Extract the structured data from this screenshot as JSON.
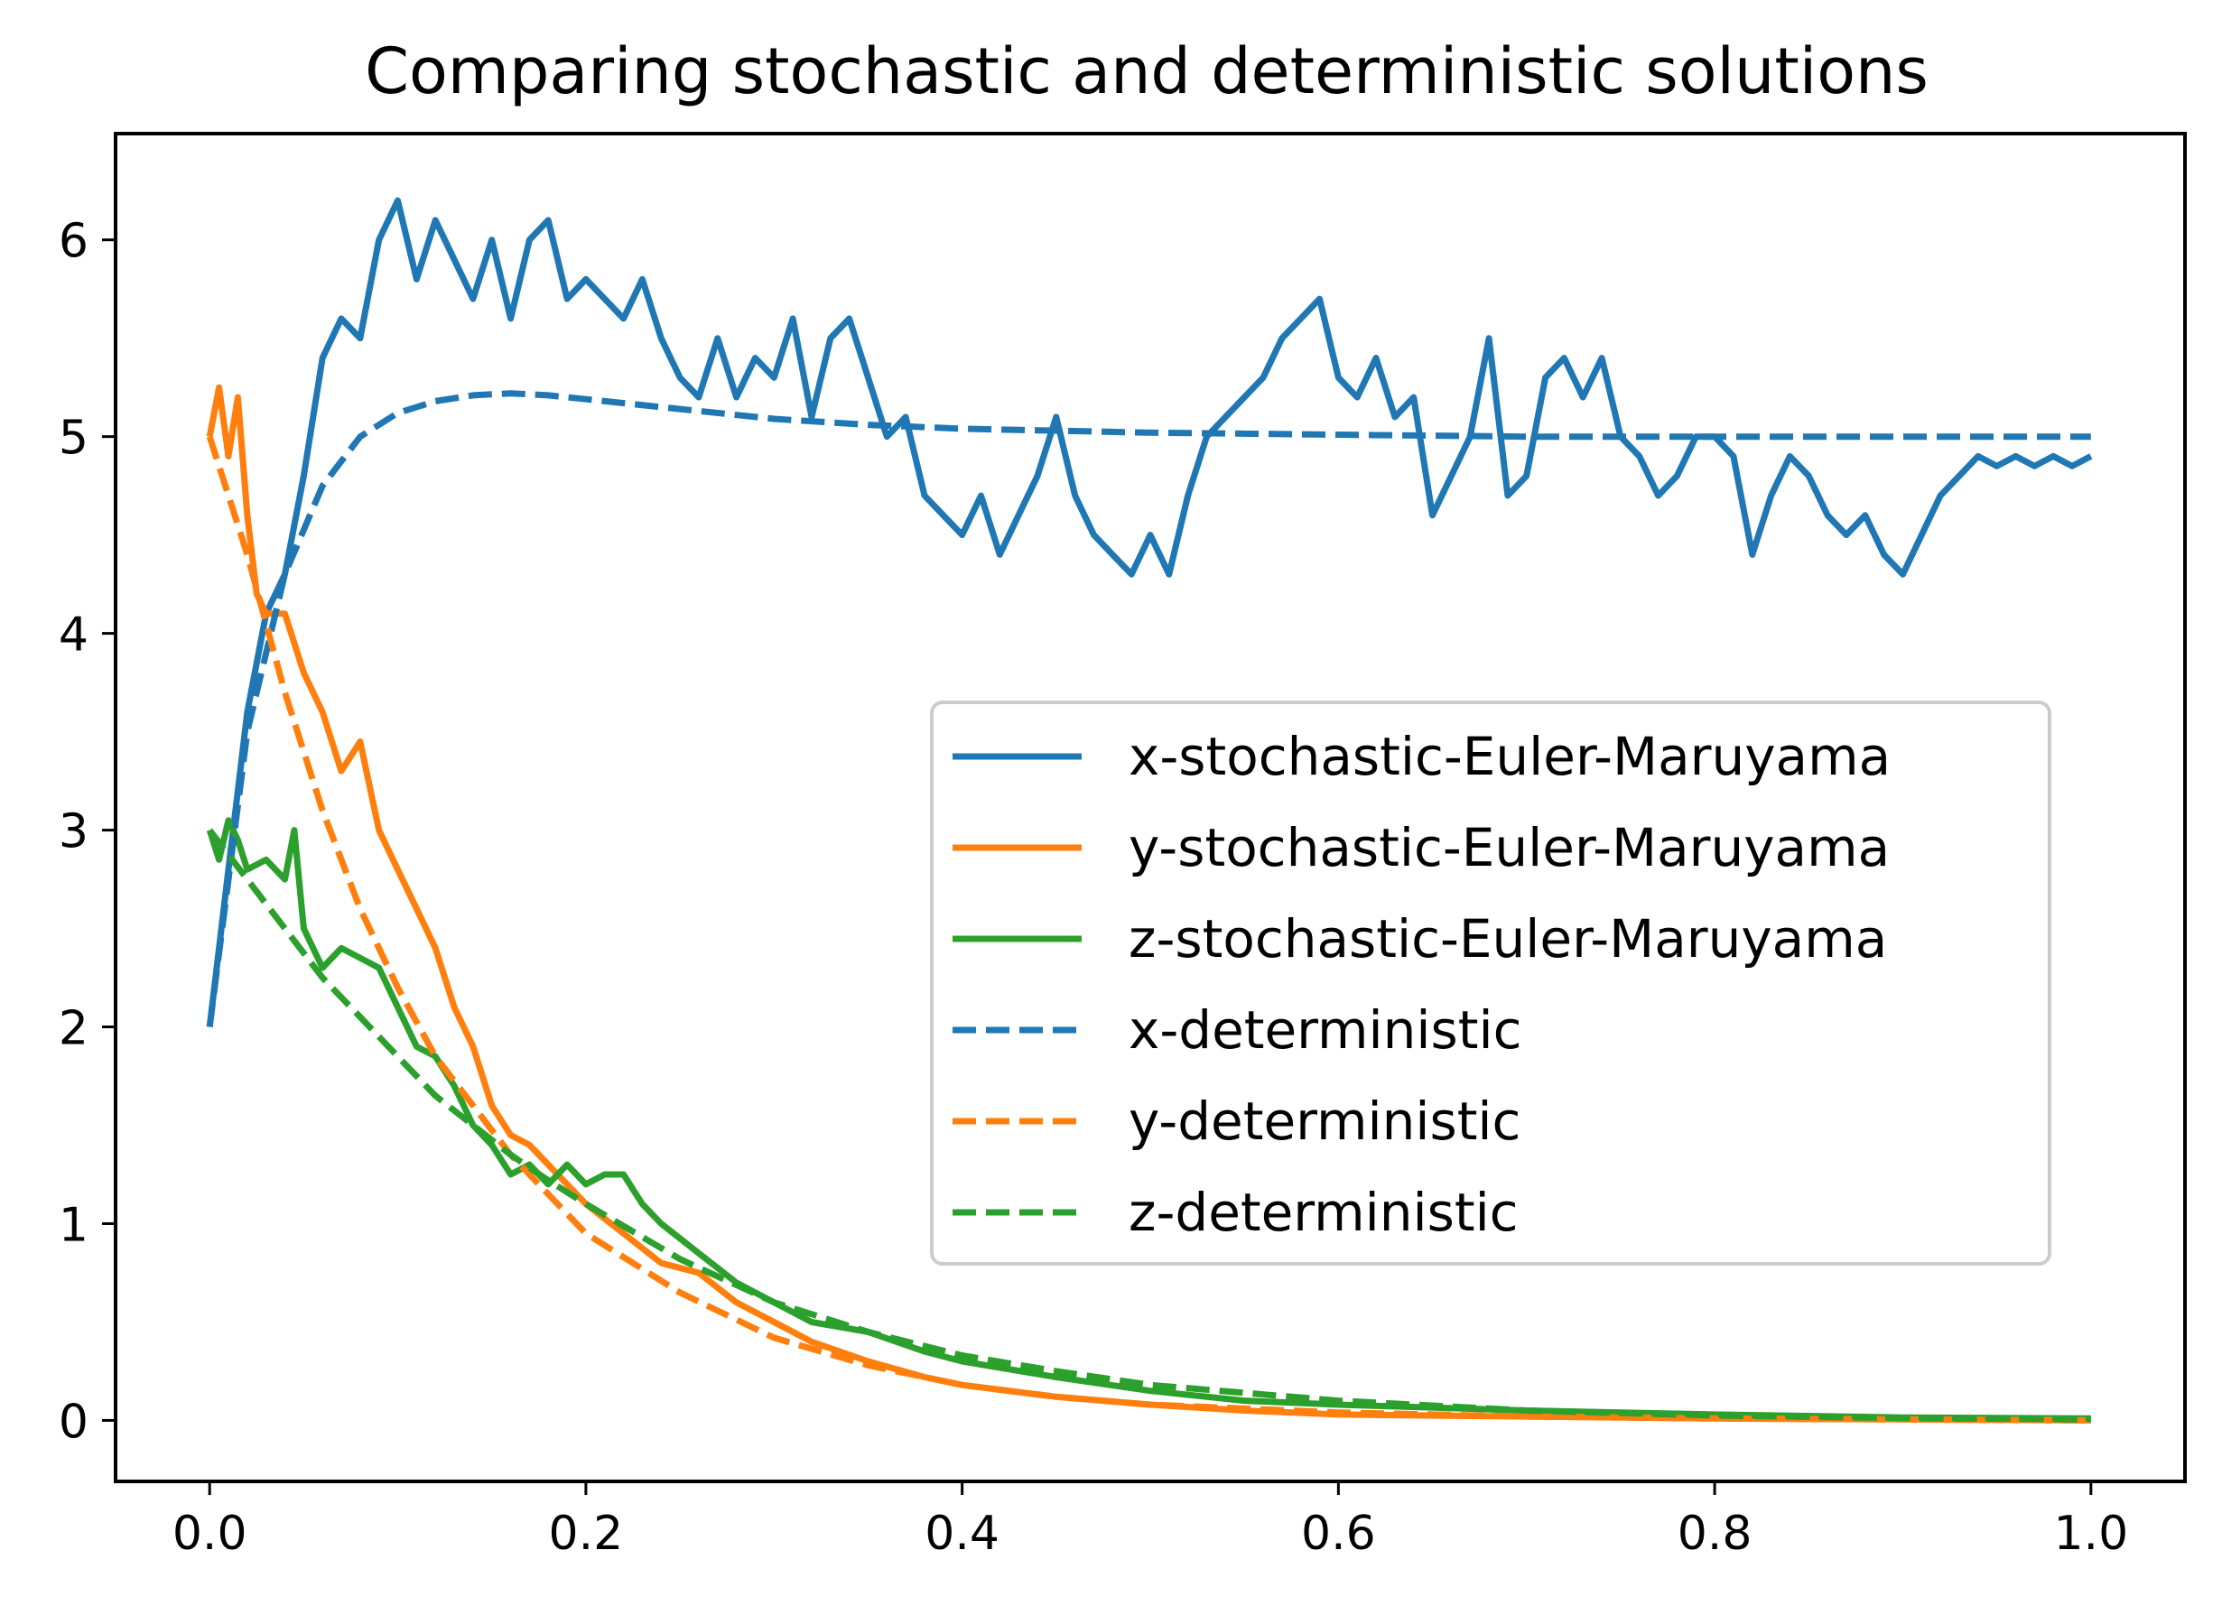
{
  "chart_data": {
    "type": "line",
    "title": "Comparing stochastic and deterministic solutions",
    "xlabel": "",
    "ylabel": "",
    "xlim": [
      -0.05,
      1.05
    ],
    "ylim": [
      -0.31,
      6.54
    ],
    "xticks": [
      0.0,
      0.2,
      0.4,
      0.6,
      0.8,
      1.0
    ],
    "xtick_labels": [
      "0.0",
      "0.2",
      "0.4",
      "0.6",
      "0.8",
      "1.0"
    ],
    "yticks": [
      0,
      1,
      2,
      3,
      4,
      5,
      6
    ],
    "ytick_labels": [
      "0",
      "1",
      "2",
      "3",
      "4",
      "5",
      "6"
    ],
    "grid": false,
    "legend_position": "center-right",
    "colors": {
      "x": "#1f77b4",
      "y": "#ff7f0e",
      "z": "#2ca02c"
    },
    "series": [
      {
        "name": "x-stochastic-Euler-Maruyama",
        "color": "#1f77b4",
        "style": "solid",
        "x": [
          0.0,
          0.01,
          0.02,
          0.03,
          0.04,
          0.05,
          0.06,
          0.07,
          0.08,
          0.09,
          0.1,
          0.11,
          0.12,
          0.13,
          0.14,
          0.15,
          0.16,
          0.17,
          0.18,
          0.19,
          0.2,
          0.21,
          0.22,
          0.23,
          0.24,
          0.25,
          0.26,
          0.27,
          0.28,
          0.29,
          0.3,
          0.31,
          0.32,
          0.33,
          0.34,
          0.35,
          0.36,
          0.37,
          0.38,
          0.39,
          0.4,
          0.41,
          0.42,
          0.43,
          0.44,
          0.45,
          0.46,
          0.47,
          0.48,
          0.49,
          0.5,
          0.51,
          0.52,
          0.53,
          0.54,
          0.55,
          0.56,
          0.57,
          0.58,
          0.59,
          0.6,
          0.61,
          0.62,
          0.63,
          0.64,
          0.65,
          0.66,
          0.67,
          0.68,
          0.69,
          0.7,
          0.71,
          0.72,
          0.73,
          0.74,
          0.75,
          0.76,
          0.77,
          0.78,
          0.79,
          0.8,
          0.81,
          0.82,
          0.83,
          0.84,
          0.85,
          0.86,
          0.87,
          0.88,
          0.89,
          0.9,
          0.91,
          0.92,
          0.93,
          0.94,
          0.95,
          0.96,
          0.97,
          0.98,
          0.99,
          1.0
        ],
        "y": [
          2.0,
          2.8,
          3.6,
          4.1,
          4.3,
          4.8,
          5.4,
          5.6,
          5.5,
          6.0,
          6.2,
          5.8,
          6.1,
          5.9,
          5.7,
          6.0,
          5.6,
          6.0,
          6.1,
          5.7,
          5.8,
          5.7,
          5.6,
          5.8,
          5.5,
          5.3,
          5.2,
          5.5,
          5.2,
          5.4,
          5.3,
          5.6,
          5.1,
          5.5,
          5.6,
          5.3,
          5.0,
          5.1,
          4.7,
          4.6,
          4.5,
          4.7,
          4.4,
          4.6,
          4.8,
          5.1,
          4.7,
          4.5,
          4.4,
          4.3,
          4.5,
          4.3,
          4.7,
          5.0,
          5.1,
          5.2,
          5.3,
          5.5,
          5.6,
          5.7,
          5.3,
          5.2,
          5.4,
          5.1,
          5.2,
          4.6,
          4.8,
          5.0,
          5.5,
          4.7,
          4.8,
          5.3,
          5.4,
          5.2,
          5.4,
          5.0,
          4.9,
          4.7,
          4.8,
          5.0,
          5.0,
          4.9,
          4.4,
          4.7,
          4.9,
          4.8,
          4.6,
          4.5,
          4.6,
          4.4,
          4.3,
          4.5,
          4.7,
          4.8,
          4.9,
          4.85,
          4.9,
          4.85,
          4.9,
          4.85,
          4.9
        ]
      },
      {
        "name": "y-stochastic-Euler-Maruyama",
        "color": "#ff7f0e",
        "style": "solid",
        "x": [
          0.0,
          0.005,
          0.01,
          0.015,
          0.02,
          0.025,
          0.03,
          0.04,
          0.05,
          0.06,
          0.07,
          0.08,
          0.09,
          0.1,
          0.11,
          0.12,
          0.13,
          0.14,
          0.15,
          0.16,
          0.17,
          0.18,
          0.19,
          0.2,
          0.22,
          0.24,
          0.26,
          0.28,
          0.3,
          0.32,
          0.35,
          0.38,
          0.4,
          0.45,
          0.5,
          0.55,
          0.6,
          0.7,
          0.8,
          0.9,
          1.0
        ],
        "y": [
          5.0,
          5.25,
          4.9,
          5.2,
          4.6,
          4.2,
          4.1,
          4.1,
          3.8,
          3.6,
          3.3,
          3.45,
          3.0,
          2.8,
          2.6,
          2.4,
          2.1,
          1.9,
          1.6,
          1.45,
          1.4,
          1.3,
          1.2,
          1.1,
          0.95,
          0.8,
          0.75,
          0.6,
          0.5,
          0.4,
          0.3,
          0.22,
          0.18,
          0.12,
          0.08,
          0.05,
          0.03,
          0.02,
          0.01,
          0.005,
          0.0
        ]
      },
      {
        "name": "z-stochastic-Euler-Maruyama",
        "color": "#2ca02c",
        "style": "solid",
        "x": [
          0.0,
          0.005,
          0.01,
          0.015,
          0.02,
          0.03,
          0.04,
          0.045,
          0.05,
          0.06,
          0.07,
          0.08,
          0.09,
          0.1,
          0.11,
          0.12,
          0.13,
          0.14,
          0.15,
          0.16,
          0.17,
          0.18,
          0.19,
          0.2,
          0.21,
          0.22,
          0.23,
          0.24,
          0.26,
          0.28,
          0.3,
          0.32,
          0.35,
          0.38,
          0.4,
          0.45,
          0.5,
          0.55,
          0.6,
          0.7,
          0.8,
          0.9,
          1.0
        ],
        "y": [
          3.0,
          2.85,
          3.05,
          2.95,
          2.8,
          2.85,
          2.75,
          3.0,
          2.5,
          2.3,
          2.4,
          2.35,
          2.3,
          2.1,
          1.9,
          1.85,
          1.7,
          1.5,
          1.4,
          1.25,
          1.3,
          1.2,
          1.3,
          1.2,
          1.25,
          1.25,
          1.1,
          1.0,
          0.85,
          0.7,
          0.6,
          0.5,
          0.45,
          0.35,
          0.3,
          0.22,
          0.15,
          0.1,
          0.08,
          0.05,
          0.03,
          0.015,
          0.01
        ]
      },
      {
        "name": "x-deterministic",
        "color": "#1f77b4",
        "style": "dashed",
        "x": [
          0.0,
          0.02,
          0.04,
          0.06,
          0.08,
          0.1,
          0.12,
          0.14,
          0.16,
          0.18,
          0.2,
          0.25,
          0.3,
          0.35,
          0.4,
          0.5,
          0.6,
          0.7,
          0.8,
          0.9,
          1.0
        ],
        "y": [
          2.0,
          3.5,
          4.3,
          4.75,
          5.0,
          5.12,
          5.18,
          5.21,
          5.22,
          5.21,
          5.19,
          5.14,
          5.09,
          5.06,
          5.04,
          5.02,
          5.01,
          5.0,
          5.0,
          5.0,
          5.0
        ]
      },
      {
        "name": "y-deterministic",
        "color": "#ff7f0e",
        "style": "dashed",
        "x": [
          0.0,
          0.02,
          0.04,
          0.06,
          0.08,
          0.1,
          0.12,
          0.14,
          0.16,
          0.18,
          0.2,
          0.25,
          0.3,
          0.35,
          0.4,
          0.45,
          0.5,
          0.6,
          0.7,
          0.8,
          0.9,
          1.0
        ],
        "y": [
          5.0,
          4.4,
          3.7,
          3.1,
          2.6,
          2.2,
          1.85,
          1.6,
          1.35,
          1.15,
          0.95,
          0.65,
          0.42,
          0.28,
          0.18,
          0.12,
          0.08,
          0.04,
          0.02,
          0.01,
          0.005,
          0.0
        ]
      },
      {
        "name": "z-deterministic",
        "color": "#2ca02c",
        "style": "dashed",
        "x": [
          0.0,
          0.02,
          0.04,
          0.06,
          0.08,
          0.1,
          0.12,
          0.14,
          0.16,
          0.18,
          0.2,
          0.25,
          0.3,
          0.35,
          0.4,
          0.45,
          0.5,
          0.6,
          0.7,
          0.8,
          0.9,
          1.0
        ],
        "y": [
          3.0,
          2.75,
          2.5,
          2.25,
          2.05,
          1.85,
          1.65,
          1.5,
          1.35,
          1.22,
          1.1,
          0.82,
          0.6,
          0.45,
          0.33,
          0.25,
          0.18,
          0.1,
          0.05,
          0.025,
          0.012,
          0.005
        ]
      }
    ]
  }
}
